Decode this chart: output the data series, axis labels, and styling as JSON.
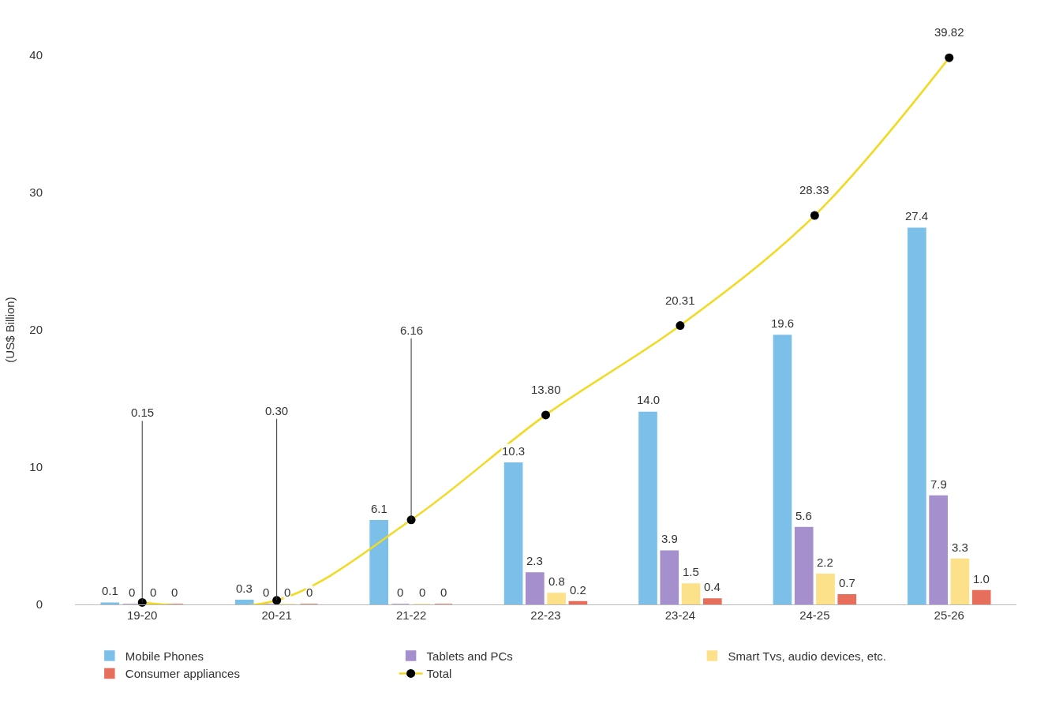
{
  "chart_data": {
    "type": "bar",
    "ylabel": "(US$ Billion)",
    "categories": [
      "19-20",
      "20-21",
      "21-22",
      "22-23",
      "23-24",
      "24-25",
      "25-26"
    ],
    "series": [
      {
        "name": "Mobile Phones",
        "color": "#7cc0ea",
        "values": [
          0.1,
          0.3,
          6.1,
          10.3,
          14.0,
          19.6,
          27.4
        ],
        "value_labels": [
          "0.1",
          "0.3",
          "6.1",
          "10.3",
          "14.0",
          "19.6",
          "27.4"
        ]
      },
      {
        "name": "Tablets and PCs",
        "color": "#a58fcc",
        "values": [
          0,
          0,
          0,
          2.3,
          3.9,
          5.6,
          7.9
        ],
        "value_labels": [
          "0",
          "0",
          "0",
          "2.3",
          "3.9",
          "5.6",
          "7.9"
        ]
      },
      {
        "name": "Smart Tvs, audio devices, etc.",
        "color": "#fde18a",
        "values": [
          0,
          0,
          0,
          0.8,
          1.5,
          2.2,
          3.3
        ],
        "value_labels": [
          "0",
          "0",
          "0",
          "0.8",
          "1.5",
          "2.2",
          "3.3"
        ]
      },
      {
        "name": "Consumer appliances",
        "color": "#e86e5c",
        "values": [
          0,
          0,
          0,
          0.2,
          0.4,
          0.7,
          1.0
        ],
        "value_labels": [
          "0",
          "0",
          "0",
          "0.2",
          "0.4",
          "0.7",
          "1.0"
        ]
      },
      {
        "name": "Total",
        "type": "line",
        "color": "#f2da22",
        "marker": "circle",
        "values": [
          0.15,
          0.3,
          6.16,
          13.8,
          20.31,
          28.33,
          39.82
        ],
        "value_labels": [
          "0.15",
          "0.30",
          "6.16",
          "13.80",
          "20.31",
          "28.33",
          "39.82"
        ]
      }
    ],
    "ylim": [
      0,
      40
    ],
    "yticks": [
      0,
      10,
      20,
      30,
      40
    ],
    "grid": false,
    "legend": "bottom"
  }
}
